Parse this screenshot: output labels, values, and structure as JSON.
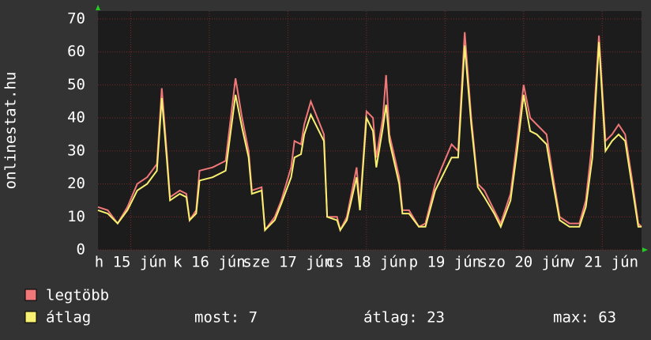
{
  "chart_data": {
    "type": "line",
    "y_label": "onlinestat.hu",
    "xlim": [
      0,
      166
    ],
    "ylim": [
      0,
      70
    ],
    "yticks": [
      0,
      10,
      20,
      30,
      40,
      50,
      60,
      70
    ],
    "xticks": [
      {
        "value": 10,
        "label": "h 15 jún"
      },
      {
        "value": 34,
        "label": "k 16 jún"
      },
      {
        "value": 58,
        "label": "sze 17 jún"
      },
      {
        "value": 82,
        "label": "cs 18 jún"
      },
      {
        "value": 106,
        "label": "p 19 jún"
      },
      {
        "value": 130,
        "label": "szo 20 jún"
      },
      {
        "value": 154,
        "label": "v 21 jún"
      }
    ],
    "grid": true,
    "x": [
      0,
      3,
      6,
      9,
      12,
      15,
      18,
      19.5,
      21,
      22,
      25,
      27,
      28,
      30,
      31,
      35,
      39,
      42,
      44,
      46,
      47,
      50,
      51,
      54,
      56,
      59,
      60,
      62,
      63,
      65,
      67,
      69,
      70,
      73,
      74,
      76,
      79,
      80,
      82,
      84,
      85,
      87,
      88,
      89,
      92,
      93,
      95,
      98,
      100,
      103,
      105,
      108,
      110,
      112,
      114,
      116,
      118,
      121,
      123,
      126,
      128,
      130,
      132,
      134,
      137,
      139,
      141,
      144,
      147,
      149,
      151,
      153,
      155,
      157,
      159,
      161,
      163,
      165,
      166
    ],
    "series": [
      {
        "name": "legtöbb",
        "color": "#f07878",
        "values": [
          13,
          12,
          8,
          13,
          20,
          22,
          26,
          49,
          30,
          16,
          18,
          17,
          9,
          12,
          24,
          25,
          27,
          52,
          40,
          30,
          18,
          19,
          6,
          10,
          15,
          25,
          33,
          32,
          38,
          45,
          40,
          35,
          10,
          10,
          6,
          10,
          25,
          13,
          42,
          40,
          28,
          40,
          53,
          35,
          22,
          12,
          12,
          7,
          8,
          20,
          25,
          32,
          30,
          66,
          40,
          20,
          18,
          12,
          8,
          17,
          33,
          50,
          40,
          38,
          35,
          22,
          10,
          8,
          8,
          15,
          33,
          65,
          33,
          35,
          38,
          35,
          22,
          8,
          7
        ]
      },
      {
        "name": "átlag",
        "color": "#f8f070",
        "values": [
          12,
          11,
          8,
          12,
          18,
          20,
          24,
          46,
          28,
          15,
          17,
          16,
          9,
          11,
          21,
          22,
          24,
          47,
          37,
          28,
          17,
          18,
          6,
          9,
          14,
          22,
          28,
          29,
          35,
          41,
          37,
          33,
          10,
          9,
          6,
          9,
          22,
          12,
          40,
          36,
          25,
          37,
          44,
          33,
          20,
          11,
          11,
          7,
          7,
          18,
          22,
          28,
          28,
          62,
          38,
          19,
          16,
          11,
          7,
          15,
          30,
          47,
          36,
          35,
          32,
          20,
          9,
          7,
          7,
          13,
          28,
          63,
          30,
          33,
          35,
          33,
          20,
          7,
          7
        ]
      }
    ],
    "stats": [
      "most: 7",
      "átlag: 23",
      "max: 63"
    ]
  }
}
